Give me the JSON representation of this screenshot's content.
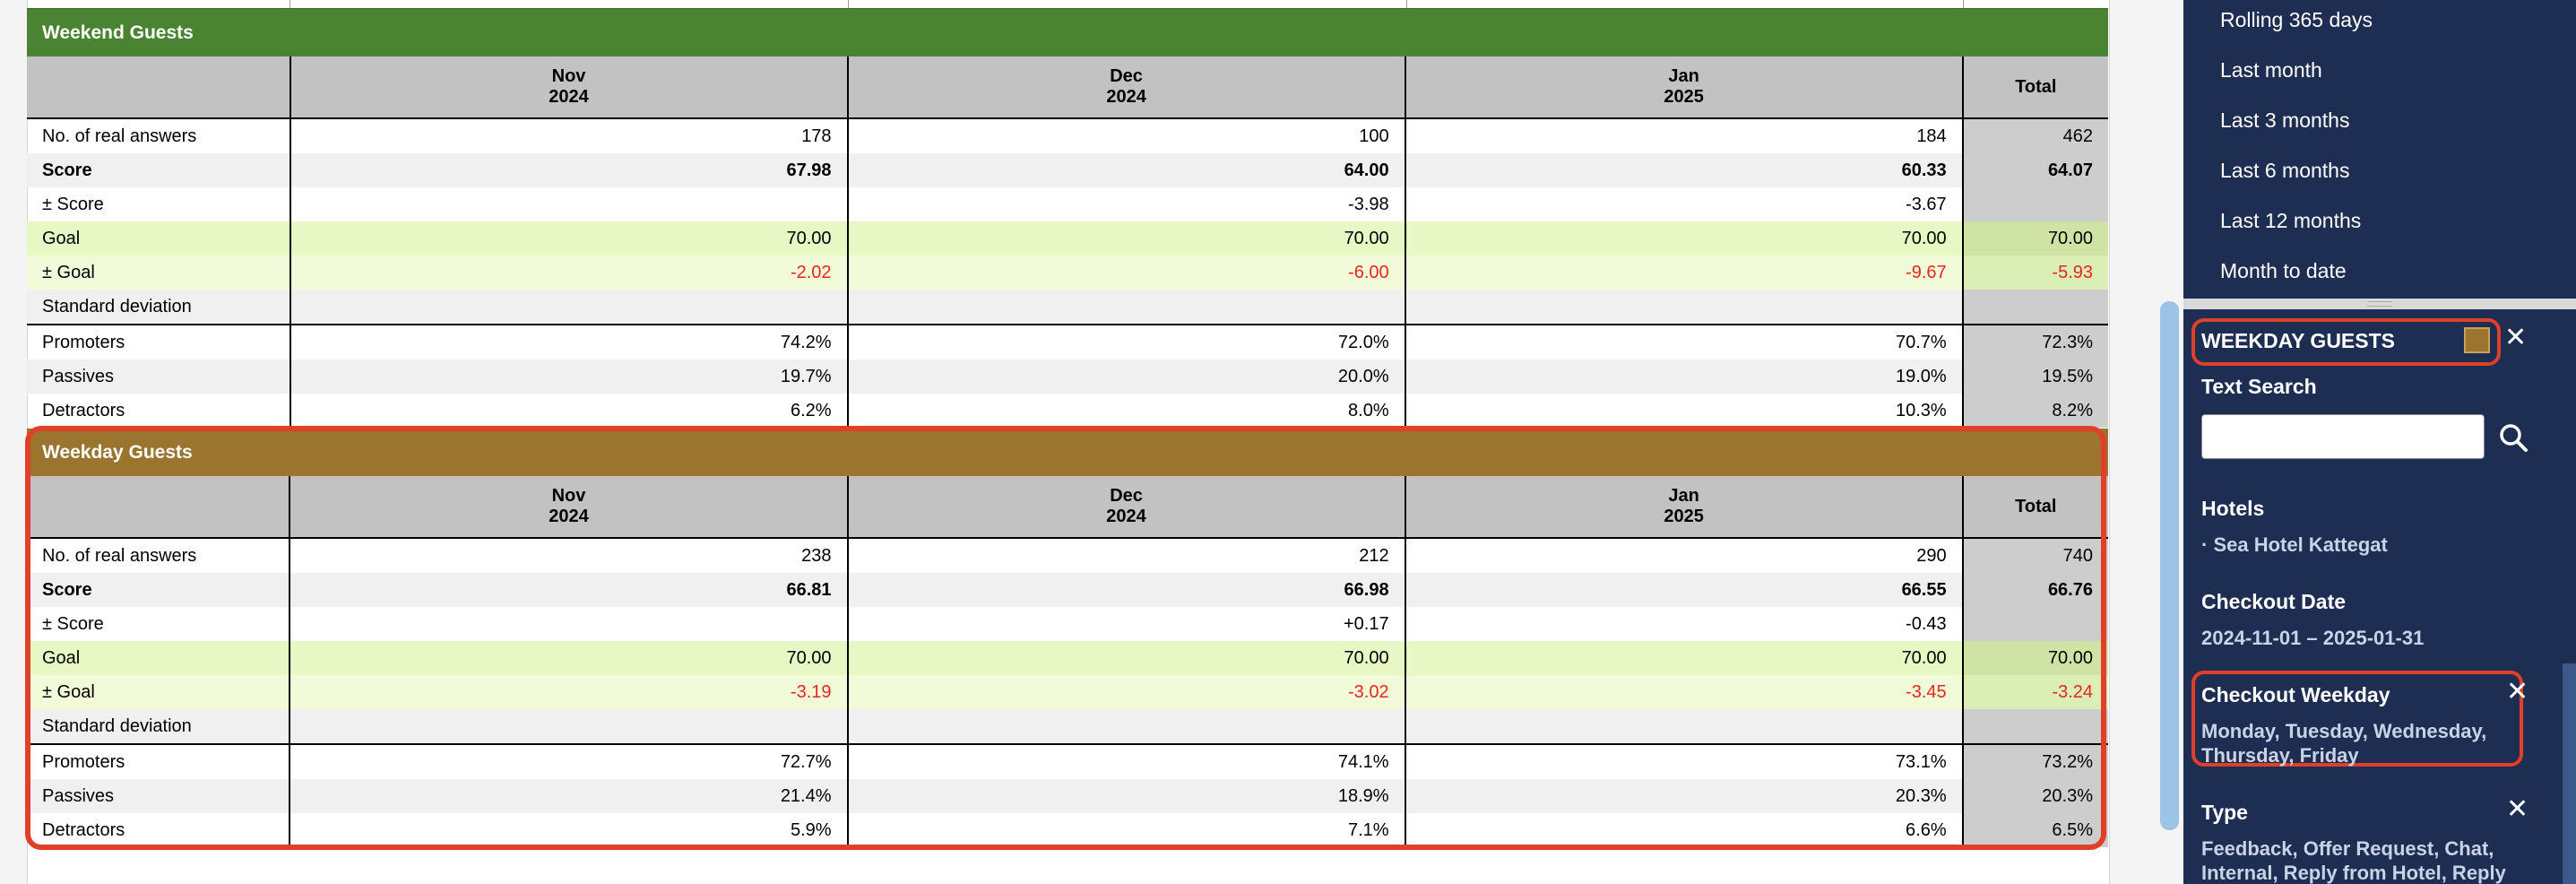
{
  "tables": [
    {
      "title": "Weekend Guests",
      "columns": [
        {
          "month": "Nov",
          "year": "2024"
        },
        {
          "month": "Dec",
          "year": "2024"
        },
        {
          "month": "Jan",
          "year": "2025"
        }
      ],
      "total_label": "Total",
      "rows": [
        {
          "label": "No. of real answers",
          "values": [
            "178",
            "100",
            "184"
          ],
          "total": "462"
        },
        {
          "label": "Score",
          "values": [
            "67.98",
            "64.00",
            "60.33"
          ],
          "total": "64.07"
        },
        {
          "label": "± Score",
          "values": [
            "",
            "-3.98",
            "-3.67"
          ],
          "total": ""
        },
        {
          "label": "Goal",
          "values": [
            "70.00",
            "70.00",
            "70.00"
          ],
          "total": "70.00"
        },
        {
          "label": "± Goal",
          "values": [
            "-2.02",
            "-6.00",
            "-9.67"
          ],
          "total": "-5.93"
        },
        {
          "label": "Standard deviation",
          "values": [
            "",
            "",
            ""
          ],
          "total": ""
        },
        {
          "label": "Promoters",
          "values": [
            "74.2%",
            "72.0%",
            "70.7%"
          ],
          "total": "72.3%"
        },
        {
          "label": "Passives",
          "values": [
            "19.7%",
            "20.0%",
            "19.0%"
          ],
          "total": "19.5%"
        },
        {
          "label": "Detractors",
          "values": [
            "6.2%",
            "8.0%",
            "10.3%"
          ],
          "total": "8.2%"
        }
      ]
    },
    {
      "title": "Weekday Guests",
      "columns": [
        {
          "month": "Nov",
          "year": "2024"
        },
        {
          "month": "Dec",
          "year": "2024"
        },
        {
          "month": "Jan",
          "year": "2025"
        }
      ],
      "total_label": "Total",
      "rows": [
        {
          "label": "No. of real answers",
          "values": [
            "238",
            "212",
            "290"
          ],
          "total": "740"
        },
        {
          "label": "Score",
          "values": [
            "66.81",
            "66.98",
            "66.55"
          ],
          "total": "66.76"
        },
        {
          "label": "± Score",
          "values": [
            "",
            "+0.17",
            "-0.43"
          ],
          "total": ""
        },
        {
          "label": "Goal",
          "values": [
            "70.00",
            "70.00",
            "70.00"
          ],
          "total": "70.00"
        },
        {
          "label": "± Goal",
          "values": [
            "-3.19",
            "-3.02",
            "-3.45"
          ],
          "total": "-3.24"
        },
        {
          "label": "Standard deviation",
          "values": [
            "",
            "",
            ""
          ],
          "total": ""
        },
        {
          "label": "Promoters",
          "values": [
            "72.7%",
            "74.1%",
            "73.1%"
          ],
          "total": "73.2%"
        },
        {
          "label": "Passives",
          "values": [
            "21.4%",
            "18.9%",
            "20.3%"
          ],
          "total": "20.3%"
        },
        {
          "label": "Detractors",
          "values": [
            "5.9%",
            "7.1%",
            "6.6%"
          ],
          "total": "6.5%"
        }
      ]
    }
  ],
  "sidebar": {
    "periods": [
      "Rolling 365 days",
      "Last month",
      "Last 3 months",
      "Last 6 months",
      "Last 12 months",
      "Month to date"
    ],
    "segment": {
      "title": "WEEKDAY GUESTS",
      "color": "#9b7530",
      "text_search_label": "Text Search",
      "text_search_value": "",
      "hotels_label": "Hotels",
      "hotels_value": "· Sea Hotel Kattegat",
      "checkout_date_label": "Checkout Date",
      "checkout_date_value": "2024-11-01 – 2025-01-31",
      "checkout_weekday_label": "Checkout Weekday",
      "checkout_weekday_line1": "Monday, Tuesday, Wednesday,",
      "checkout_weekday_line2": "Thursday, Friday",
      "type_label": "Type",
      "type_line1": "Feedback, Offer Request, Chat,",
      "type_line2": "Internal, Reply from Hotel, Reply"
    }
  },
  "icons": {
    "close": "close-icon",
    "search": "search-icon"
  }
}
